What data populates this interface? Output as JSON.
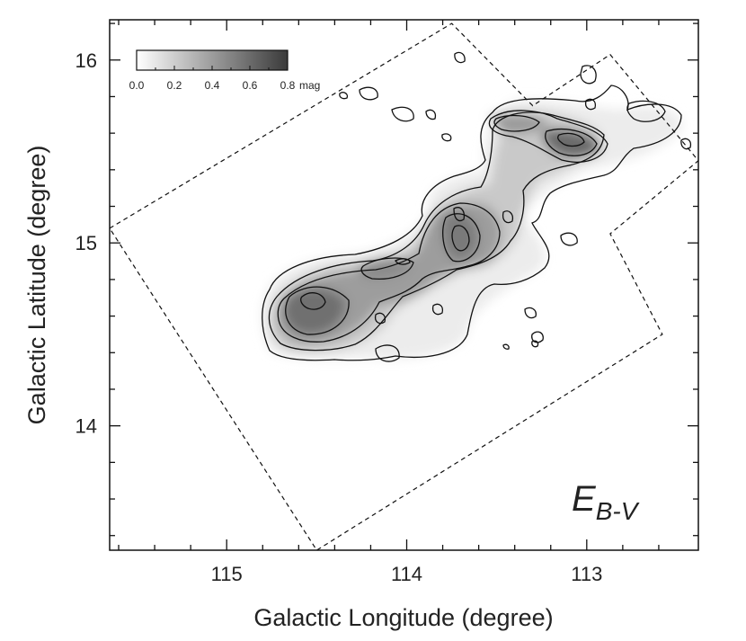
{
  "chart_data": {
    "type": "heatmap",
    "title": "",
    "xlabel": "Galactic Longitude (degree)",
    "ylabel": "Galactic Latitude (degree)",
    "xlim": [
      115.65,
      112.38
    ],
    "ylim": [
      13.32,
      16.22
    ],
    "x_reversed": true,
    "x_ticks": [
      115,
      114,
      113
    ],
    "x_tick_labels": [
      "115",
      "114",
      "113"
    ],
    "y_ticks": [
      14,
      15,
      16
    ],
    "y_tick_labels": [
      "14",
      "15",
      "16"
    ],
    "panel_label": {
      "main": "E",
      "subscript": "B-V"
    },
    "colorbar": {
      "ticks": [
        0.0,
        0.2,
        0.4,
        0.6,
        0.8
      ],
      "tick_labels": [
        "0.0",
        "0.2",
        "0.4",
        "0.6",
        "0.8"
      ],
      "unit": "mag",
      "colors": [
        "#ffffff",
        "#3a3a3a"
      ]
    },
    "survey_boundary": [
      [
        115.65,
        15.08
      ],
      [
        113.75,
        16.2
      ],
      [
        113.3,
        15.75
      ],
      [
        112.87,
        16.03
      ],
      [
        112.38,
        15.45
      ],
      [
        112.87,
        15.05
      ],
      [
        112.58,
        14.5
      ],
      [
        114.5,
        13.32
      ],
      [
        115.65,
        15.08
      ]
    ],
    "extinction_peaks": [
      {
        "l": 114.52,
        "b": 14.7,
        "ebv": 0.8
      },
      {
        "l": 114.0,
        "b": 14.9,
        "ebv": 0.65
      },
      {
        "l": 113.7,
        "b": 15.0,
        "ebv": 0.7
      },
      {
        "l": 113.73,
        "b": 15.18,
        "ebv": 0.6
      },
      {
        "l": 113.1,
        "b": 15.57,
        "ebv": 0.75
      },
      {
        "l": 113.42,
        "b": 15.62,
        "ebv": 0.55
      },
      {
        "l": 112.72,
        "b": 15.7,
        "ebv": 0.35
      }
    ]
  }
}
